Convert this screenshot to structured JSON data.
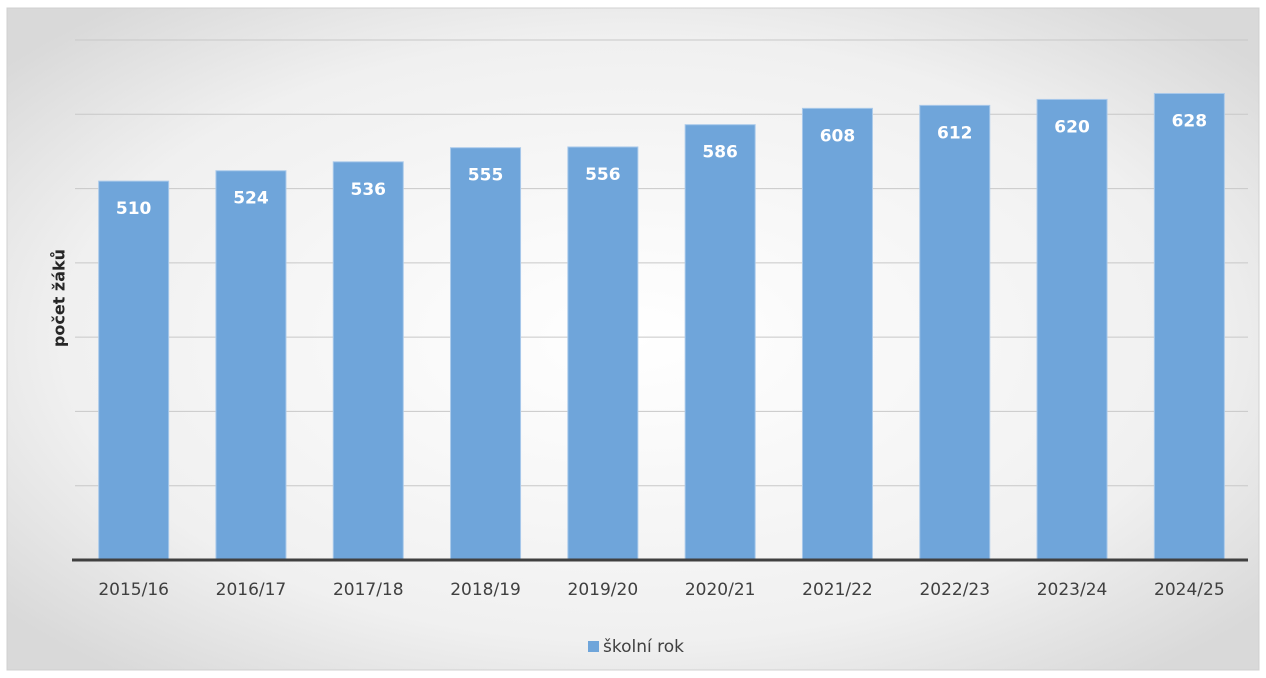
{
  "chart_data": {
    "type": "bar",
    "y_label": "počet žáků",
    "categories": [
      "2015/16",
      "2016/17",
      "2017/18",
      "2018/19",
      "2019/20",
      "2020/21",
      "2021/22",
      "2022/23",
      "2023/24",
      "2024/25"
    ],
    "series": [
      {
        "name": "školní rok",
        "color": "#6fa5da",
        "values": [
          510,
          524,
          536,
          555,
          556,
          586,
          608,
          612,
          620,
          628
        ]
      }
    ],
    "ylim": [
      0,
      700
    ],
    "yticks": [
      0,
      100,
      200,
      300,
      400,
      500,
      600,
      700
    ],
    "grid": true,
    "ytick_labels": false,
    "data_labels": true,
    "legend": "bottom"
  }
}
